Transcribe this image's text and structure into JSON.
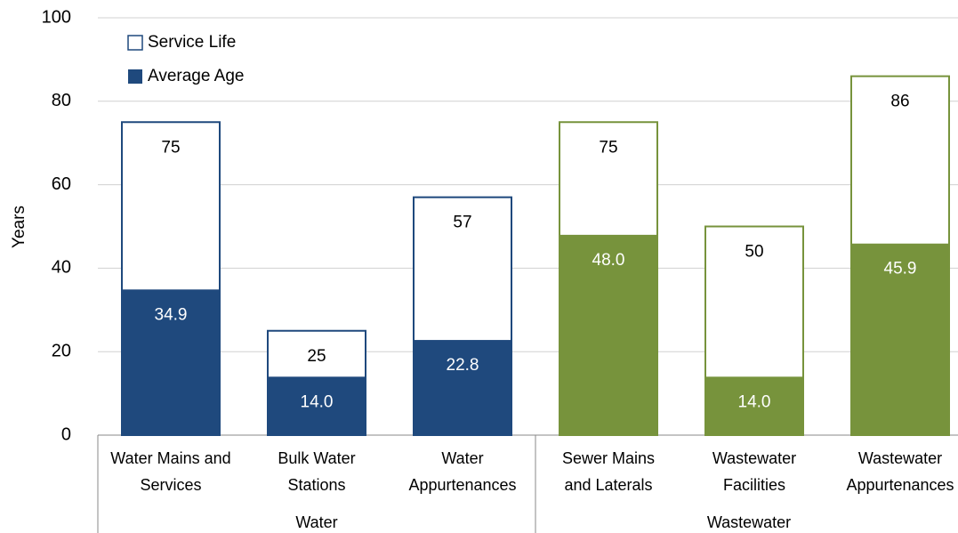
{
  "chart_data": {
    "type": "bar",
    "ylabel": "Years",
    "ylim": [
      0,
      100
    ],
    "yticks": [
      0,
      20,
      40,
      60,
      80,
      100
    ],
    "grid": true,
    "legend": "upper left",
    "groups": [
      {
        "label": "Water",
        "color": "#1f497d",
        "categories": [
          "Water Mains and\nServices",
          "Bulk Water\nStations",
          "Water\nAppurtenances"
        ]
      },
      {
        "label": "Wastewater",
        "color": "#77933c",
        "categories": [
          "Sewer Mains\nand Laterals",
          "Wastewater\nFacilities",
          "Wastewater\nAppurtenances"
        ]
      }
    ],
    "series": [
      {
        "name": "Service Life",
        "style": "outline",
        "values": [
          75,
          25,
          57,
          75,
          50,
          86
        ]
      },
      {
        "name": "Average Age",
        "style": "filled",
        "values": [
          34.9,
          14.0,
          22.8,
          48.0,
          14.0,
          45.9
        ],
        "value_labels": [
          "34.9",
          "14.0",
          "22.8",
          "48.0",
          "14.0",
          "45.9"
        ]
      }
    ]
  }
}
